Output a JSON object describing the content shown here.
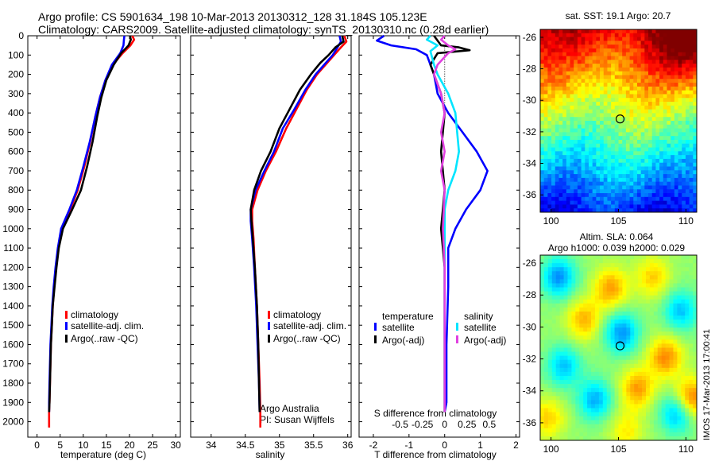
{
  "header": {
    "line1": "Argo profile: CS 5901634_198 10-Mar-2013 20130312_128 31.184S 105.123E",
    "line2": "Climatology: CARS2009. Satellite-adjusted climatology: synTS_20130310.nc (0.28d earlier)"
  },
  "colors": {
    "climatology": "#ff0000",
    "satellite": "#0000ff",
    "argo": "#000000",
    "sat_sal": "#00e5ff",
    "argo_sal": "#e040e0"
  },
  "chart_data": [
    {
      "type": "line",
      "title": "temperature",
      "xlabel": "temperature (deg C)",
      "xlim": [
        -2,
        31
      ],
      "ylim": [
        2080,
        0
      ],
      "xticks": [
        0,
        5,
        10,
        15,
        20,
        25,
        30
      ],
      "yticks": [
        0,
        100,
        200,
        300,
        400,
        500,
        600,
        700,
        800,
        900,
        1000,
        1100,
        1200,
        1300,
        1400,
        1500,
        1600,
        1700,
        1800,
        1900,
        2000
      ],
      "legend": [
        "climatology",
        "satellite-adj. clim.",
        "Argo(..raw -QC)"
      ],
      "series": [
        {
          "name": "climatology",
          "color": "#ff0000",
          "points": [
            [
              20.6,
              0
            ],
            [
              21.0,
              20
            ],
            [
              20.2,
              50
            ],
            [
              18.5,
              90
            ],
            [
              16.4,
              150
            ],
            [
              14.8,
              230
            ],
            [
              13.6,
              320
            ],
            [
              12.6,
              420
            ],
            [
              11.5,
              550
            ],
            [
              10.2,
              680
            ],
            [
              8.8,
              800
            ],
            [
              7.2,
              900
            ],
            [
              5.4,
              1000
            ],
            [
              4.6,
              1100
            ],
            [
              4.1,
              1200
            ],
            [
              3.7,
              1300
            ],
            [
              3.4,
              1400
            ],
            [
              3.2,
              1500
            ],
            [
              3.0,
              1600
            ],
            [
              2.9,
              1700
            ],
            [
              2.8,
              1800
            ],
            [
              2.7,
              1900
            ],
            [
              2.6,
              1950
            ],
            [
              2.6,
              2030
            ]
          ]
        },
        {
          "name": "satellite-adj. clim.",
          "color": "#0000ff",
          "points": [
            [
              18.9,
              0
            ],
            [
              18.8,
              20
            ],
            [
              18.7,
              50
            ],
            [
              18.0,
              90
            ],
            [
              16.2,
              150
            ],
            [
              14.8,
              230
            ],
            [
              13.6,
              320
            ],
            [
              12.6,
              420
            ],
            [
              11.4,
              550
            ],
            [
              10.0,
              680
            ],
            [
              8.6,
              800
            ],
            [
              7.0,
              900
            ],
            [
              5.2,
              1000
            ],
            [
              4.5,
              1100
            ],
            [
              4.0,
              1200
            ],
            [
              3.6,
              1300
            ],
            [
              3.3,
              1400
            ],
            [
              3.1,
              1500
            ],
            [
              2.9,
              1600
            ],
            [
              2.8,
              1700
            ],
            [
              2.7,
              1800
            ],
            [
              2.6,
              1900
            ],
            [
              2.6,
              1950
            ]
          ]
        },
        {
          "name": "Argo(..raw -QC)",
          "color": "#000000",
          "points": [
            [
              20.1,
              0
            ],
            [
              20.3,
              20
            ],
            [
              19.8,
              50
            ],
            [
              18.2,
              90
            ],
            [
              16.6,
              150
            ],
            [
              15.0,
              230
            ],
            [
              13.9,
              320
            ],
            [
              13.0,
              420
            ],
            [
              12.0,
              550
            ],
            [
              10.8,
              680
            ],
            [
              9.5,
              800
            ],
            [
              7.6,
              900
            ],
            [
              5.6,
              1000
            ],
            [
              4.7,
              1100
            ],
            [
              4.2,
              1200
            ],
            [
              3.8,
              1300
            ],
            [
              3.4,
              1400
            ],
            [
              3.2,
              1500
            ],
            [
              3.0,
              1600
            ],
            [
              2.9,
              1700
            ],
            [
              2.8,
              1800
            ],
            [
              2.7,
              1900
            ],
            [
              2.6,
              1950
            ]
          ]
        }
      ]
    },
    {
      "type": "line",
      "title": "salinity",
      "xlabel": "salinity",
      "xlim": [
        33.7,
        36.05
      ],
      "ylim": [
        2080,
        0
      ],
      "xticks": [
        34,
        34.5,
        35,
        35.5,
        36
      ],
      "legend": [
        "climatology",
        "satellite-adj. clim.",
        "Argo(..raw -QC)"
      ],
      "annotation": [
        "Argo Australia",
        "PI: Susan Wijffels"
      ],
      "series": [
        {
          "name": "climatology",
          "color": "#ff0000",
          "points": [
            [
              35.95,
              0
            ],
            [
              35.98,
              30
            ],
            [
              35.9,
              60
            ],
            [
              35.8,
              100
            ],
            [
              35.7,
              140
            ],
            [
              35.55,
              200
            ],
            [
              35.4,
              280
            ],
            [
              35.25,
              380
            ],
            [
              35.1,
              480
            ],
            [
              34.95,
              600
            ],
            [
              34.8,
              700
            ],
            [
              34.68,
              800
            ],
            [
              34.6,
              900
            ],
            [
              34.6,
              960
            ],
            [
              34.62,
              1050
            ],
            [
              34.64,
              1200
            ],
            [
              34.67,
              1400
            ],
            [
              34.69,
              1600
            ],
            [
              34.71,
              1800
            ],
            [
              34.72,
              1950
            ],
            [
              34.72,
              2030
            ]
          ]
        },
        {
          "name": "satellite-adj. clim.",
          "color": "#0000ff",
          "points": [
            [
              35.88,
              0
            ],
            [
              35.9,
              30
            ],
            [
              35.85,
              60
            ],
            [
              35.78,
              100
            ],
            [
              35.68,
              140
            ],
            [
              35.53,
              200
            ],
            [
              35.38,
              280
            ],
            [
              35.22,
              380
            ],
            [
              35.05,
              480
            ],
            [
              34.92,
              600
            ],
            [
              34.78,
              700
            ],
            [
              34.65,
              800
            ],
            [
              34.58,
              900
            ],
            [
              34.58,
              960
            ],
            [
              34.6,
              1050
            ],
            [
              34.63,
              1200
            ],
            [
              34.66,
              1400
            ],
            [
              34.68,
              1600
            ],
            [
              34.7,
              1800
            ],
            [
              34.71,
              1950
            ]
          ]
        },
        {
          "name": "Argo(..raw -QC)",
          "color": "#000000",
          "points": [
            [
              35.92,
              0
            ],
            [
              35.94,
              30
            ],
            [
              35.82,
              60
            ],
            [
              35.72,
              100
            ],
            [
              35.6,
              140
            ],
            [
              35.46,
              200
            ],
            [
              35.3,
              280
            ],
            [
              35.15,
              380
            ],
            [
              35.0,
              480
            ],
            [
              34.87,
              600
            ],
            [
              34.73,
              700
            ],
            [
              34.63,
              800
            ],
            [
              34.58,
              900
            ],
            [
              34.59,
              960
            ],
            [
              34.61,
              1050
            ],
            [
              34.64,
              1200
            ],
            [
              34.67,
              1400
            ],
            [
              34.69,
              1600
            ],
            [
              34.7,
              1800
            ],
            [
              34.71,
              1950
            ]
          ]
        }
      ]
    },
    {
      "type": "line",
      "title": "difference",
      "xlabel": "T difference from climatology",
      "xlabel_top": "S difference from climatology",
      "xlim": [
        -2.4,
        2.1
      ],
      "ylim": [
        2080,
        0
      ],
      "xticks": [
        -2,
        -1,
        0,
        1,
        2
      ],
      "xtick_labels": [
        "-2",
        "-1",
        "0",
        "1",
        "2"
      ],
      "xticks_top": [
        -1.25,
        -0.625,
        0,
        0.625,
        1.25
      ],
      "xtick_labels_top": [
        "-0.5",
        "-0.25",
        "0",
        "0.25",
        "0.5"
      ],
      "legend_left_title": "temperature",
      "legend_left": [
        "satellite",
        "Argo(-adj)"
      ],
      "legend_right_title": "salinity",
      "legend_right": [
        "satellite",
        "Argo(-adj)"
      ],
      "series": [
        {
          "name": "temperature satellite",
          "color": "#0000ff",
          "points": [
            [
              -1.7,
              0
            ],
            [
              -1.9,
              25
            ],
            [
              -1.5,
              50
            ],
            [
              -0.8,
              70
            ],
            [
              -0.5,
              100
            ],
            [
              -0.3,
              200
            ],
            [
              -0.2,
              300
            ],
            [
              0.1,
              400
            ],
            [
              0.5,
              500
            ],
            [
              0.9,
              600
            ],
            [
              1.2,
              700
            ],
            [
              1.0,
              800
            ],
            [
              0.6,
              900
            ],
            [
              0.3,
              1000
            ],
            [
              0.1,
              1100
            ],
            [
              0.1,
              1300
            ],
            [
              0.05,
              1600
            ],
            [
              0.05,
              1900
            ],
            [
              0.0,
              1950
            ]
          ]
        },
        {
          "name": "temperature Argo(-adj)",
          "color": "#000000",
          "points": [
            [
              -0.3,
              0
            ],
            [
              -0.2,
              25
            ],
            [
              -0.1,
              50
            ],
            [
              0.4,
              60
            ],
            [
              0.7,
              75
            ],
            [
              -0.2,
              90
            ],
            [
              -0.4,
              150
            ],
            [
              -0.1,
              300
            ],
            [
              0.0,
              400
            ],
            [
              -0.1,
              600
            ],
            [
              0.0,
              800
            ],
            [
              -0.1,
              1000
            ],
            [
              0.0,
              1200
            ],
            [
              0.0,
              1500
            ],
            [
              0.0,
              1950
            ]
          ]
        },
        {
          "name": "salinity satellite",
          "color": "#00e5ff",
          "points": [
            [
              -0.4,
              0
            ],
            [
              -0.5,
              20
            ],
            [
              -0.2,
              50
            ],
            [
              -0.4,
              80
            ],
            [
              -0.3,
              150
            ],
            [
              -0.2,
              200
            ],
            [
              0.1,
              300
            ],
            [
              0.3,
              400
            ],
            [
              0.4,
              600
            ],
            [
              0.3,
              700
            ],
            [
              0.1,
              800
            ],
            [
              0.0,
              900
            ],
            [
              0.0,
              1200
            ],
            [
              0.0,
              1600
            ],
            [
              0.0,
              1950
            ]
          ]
        },
        {
          "name": "salinity Argo(-adj)",
          "color": "#e040e0",
          "points": [
            [
              0.0,
              0
            ],
            [
              -0.1,
              20
            ],
            [
              0.1,
              50
            ],
            [
              0.3,
              70
            ],
            [
              0.1,
              90
            ],
            [
              -0.2,
              150
            ],
            [
              -0.3,
              200
            ],
            [
              -0.1,
              300
            ],
            [
              0.0,
              400
            ],
            [
              -0.1,
              500
            ],
            [
              0.0,
              600
            ],
            [
              -0.1,
              700
            ],
            [
              0.0,
              800
            ],
            [
              -0.05,
              1000
            ],
            [
              0.0,
              1200
            ],
            [
              0.0,
              1500
            ],
            [
              0.0,
              1950
            ]
          ]
        }
      ]
    },
    {
      "type": "heatmap",
      "title": "sat. SST: 19.1  Argo: 20.7",
      "xlim": [
        99.2,
        110.8
      ],
      "ylim": [
        -37.1,
        -25.5
      ],
      "xticks": [
        100,
        105,
        110
      ],
      "yticks": [
        -26,
        -28,
        -30,
        -32,
        -34,
        -36
      ],
      "marker": [
        105.12,
        -31.18
      ]
    },
    {
      "type": "heatmap",
      "title": "Altim. SLA: 0.064",
      "subtitle": "Argo h1000: 0.039  h2000: 0.029",
      "xlim": [
        99.2,
        110.8
      ],
      "ylim": [
        -37.1,
        -25.5
      ],
      "xticks": [
        100,
        105,
        110
      ],
      "yticks": [
        -26,
        -28,
        -30,
        -32,
        -34,
        -36
      ],
      "marker": [
        105.12,
        -31.18
      ]
    }
  ],
  "credit": "IMOS 17-Mar-2013 17:00:41"
}
